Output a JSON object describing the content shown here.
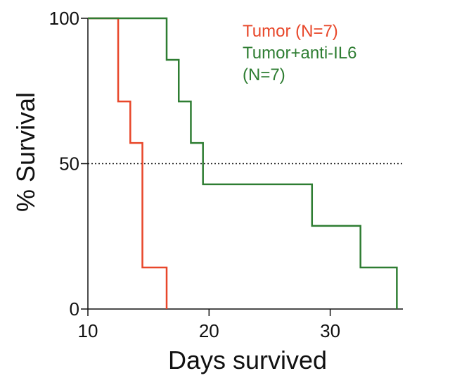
{
  "chart_data": {
    "type": "line",
    "subtype": "kaplan-meier-step",
    "xlabel": "Days survived",
    "ylabel": "% Survival",
    "xlim": [
      10,
      36
    ],
    "ylim": [
      0,
      100
    ],
    "x_ticks": [
      10,
      20,
      30
    ],
    "y_ticks": [
      0,
      50,
      100
    ],
    "reference_line": {
      "y": 50,
      "style": "dotted"
    },
    "grid": false,
    "legend_position": "top-right",
    "series": [
      {
        "name": "Tumor (N=7)",
        "color": "#e8472a",
        "x": [
          10,
          12.5,
          12.5,
          13.5,
          13.5,
          14.5,
          14.5,
          16.5,
          16.5
        ],
        "y": [
          100,
          100,
          71.4,
          71.4,
          57.1,
          57.1,
          14.3,
          14.3,
          0
        ]
      },
      {
        "name": "Tumor+anti-IL6\n(N=7)",
        "legend_lines": [
          "Tumor+anti-IL6",
          "(N=7)"
        ],
        "color": "#2e7d32",
        "x": [
          10,
          16.5,
          16.5,
          17.5,
          17.5,
          18.5,
          18.5,
          19.5,
          19.5,
          28.5,
          28.5,
          32.5,
          32.5,
          35.5,
          35.5
        ],
        "y": [
          100,
          100,
          85.7,
          85.7,
          71.4,
          71.4,
          57.1,
          57.1,
          42.9,
          42.9,
          28.6,
          28.6,
          14.3,
          14.3,
          0
        ]
      }
    ]
  }
}
